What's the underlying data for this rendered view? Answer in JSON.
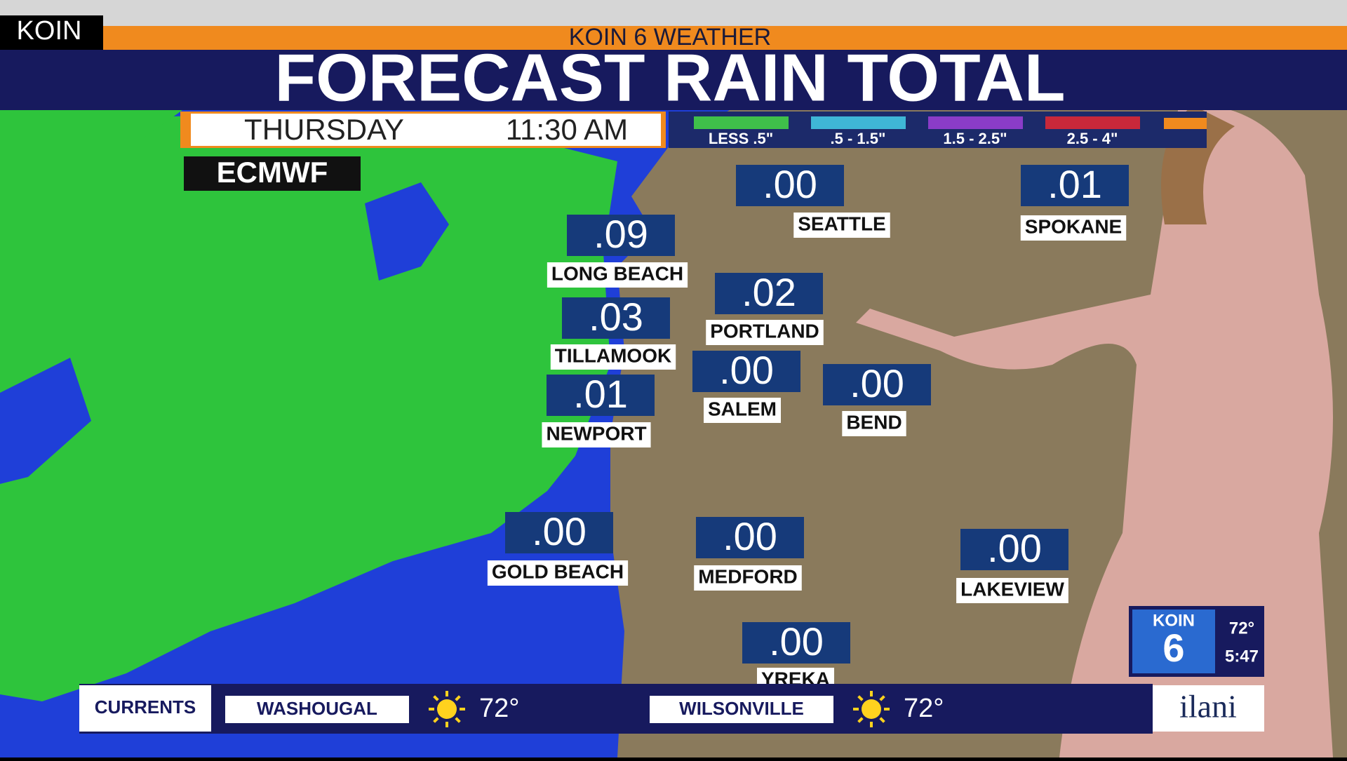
{
  "header": {
    "brand": "KOIN",
    "network": "KOIN 6 WEATHER",
    "title": "FORECAST RAIN TOTAL"
  },
  "time_bar": {
    "day": "THURSDAY",
    "time": "11:30 AM",
    "model": "ECMWF"
  },
  "legend": [
    {
      "label": "LESS .5\"",
      "color": "#3fc04a"
    },
    {
      "label": ".5 - 1.5\"",
      "color": "#3fb6d6"
    },
    {
      "label": "1.5 - 2.5\"",
      "color": "#8a3cc8"
    },
    {
      "label": "2.5 - 4\"",
      "color": "#c8283a"
    }
  ],
  "cities": [
    {
      "name": "SEATTLE",
      "amount": ".00"
    },
    {
      "name": "SPOKANE",
      "amount": ".01"
    },
    {
      "name": "LONG BEACH",
      "amount": ".09"
    },
    {
      "name": "PORTLAND",
      "amount": ".02"
    },
    {
      "name": "TILLAMOOK",
      "amount": ".03"
    },
    {
      "name": "SALEM",
      "amount": ".00"
    },
    {
      "name": "BEND",
      "amount": ".00"
    },
    {
      "name": "NEWPORT",
      "amount": ".01"
    },
    {
      "name": "GOLD BEACH",
      "amount": ".00"
    },
    {
      "name": "MEDFORD",
      "amount": ".00"
    },
    {
      "name": "LAKEVIEW",
      "amount": ".00"
    },
    {
      "name": "YREKA",
      "amount": ".00"
    }
  ],
  "ticker": {
    "label": "CURRENTS",
    "items": [
      {
        "place": "WASHOUGAL",
        "temp": "72°"
      },
      {
        "place": "WILSONVILLE",
        "temp": "72°"
      }
    ]
  },
  "bug": {
    "logo": "KOIN",
    "channel": "6",
    "temp": "72°",
    "time": "5:47"
  },
  "sponsor": "ilani"
}
